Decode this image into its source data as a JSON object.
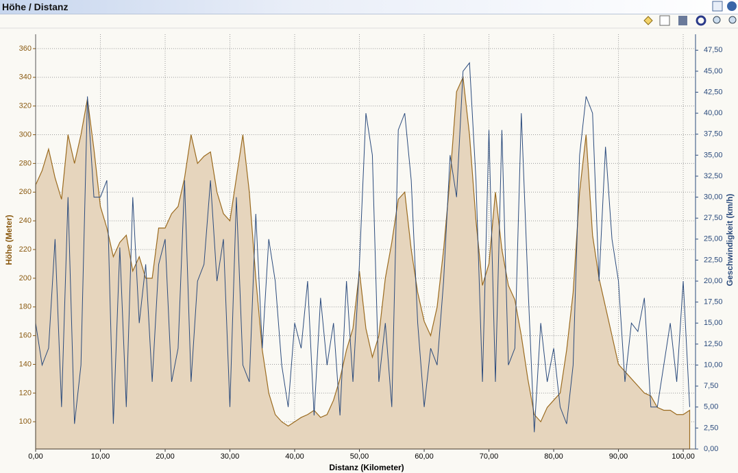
{
  "header": {
    "title": "Höhe / Distanz"
  },
  "chart_data": {
    "type": "line",
    "grid": true,
    "xlabel": "Distanz (Kilometer)",
    "ylabel": "Höhe (Meter)",
    "y2label": "Geschwindigkeit (km/h)",
    "x": [
      0,
      1,
      2,
      3,
      4,
      5,
      6,
      7,
      8,
      9,
      10,
      11,
      12,
      13,
      14,
      15,
      16,
      17,
      18,
      19,
      20,
      21,
      22,
      23,
      24,
      25,
      26,
      27,
      28,
      29,
      30,
      31,
      32,
      33,
      34,
      35,
      36,
      37,
      38,
      39,
      40,
      41,
      42,
      43,
      44,
      45,
      46,
      47,
      48,
      49,
      50,
      51,
      52,
      53,
      54,
      55,
      56,
      57,
      58,
      59,
      60,
      61,
      62,
      63,
      64,
      65,
      66,
      67,
      68,
      69,
      70,
      71,
      72,
      73,
      74,
      75,
      76,
      77,
      78,
      79,
      80,
      81,
      82,
      83,
      84,
      85,
      86,
      87,
      88,
      89,
      90,
      91,
      92,
      93,
      94,
      95,
      96,
      97,
      98,
      99,
      100,
      101
    ],
    "series": [
      {
        "type": "area",
        "color": "#9a6a1e",
        "fill": "#e6d5bd",
        "values": [
          265,
          275,
          290,
          270,
          255,
          300,
          280,
          300,
          325,
          290,
          250,
          235,
          215,
          225,
          230,
          205,
          215,
          200,
          200,
          235,
          235,
          245,
          250,
          270,
          300,
          280,
          285,
          288,
          260,
          245,
          240,
          270,
          300,
          260,
          200,
          150,
          120,
          105,
          100,
          97,
          100,
          103,
          105,
          108,
          103,
          105,
          115,
          130,
          150,
          165,
          205,
          165,
          145,
          160,
          200,
          225,
          255,
          260,
          220,
          190,
          170,
          160,
          180,
          220,
          270,
          330,
          340,
          300,
          240,
          195,
          210,
          260,
          220,
          195,
          185,
          160,
          130,
          105,
          100,
          110,
          115,
          120,
          150,
          190,
          260,
          300,
          230,
          200,
          180,
          160,
          140,
          135,
          130,
          125,
          120,
          118,
          110,
          108,
          108,
          105,
          105,
          108
        ]
      },
      {
        "type": "line",
        "axis": "y2",
        "color": "#2a4a7c",
        "values": [
          15,
          10,
          12,
          25,
          5,
          30,
          3,
          10,
          42,
          30,
          30,
          32,
          3,
          24,
          5,
          30,
          15,
          22,
          8,
          22,
          25,
          8,
          12,
          32,
          8,
          20,
          22,
          32,
          20,
          25,
          5,
          30,
          10,
          8,
          28,
          12,
          25,
          20,
          10,
          5,
          15,
          12,
          20,
          4,
          18,
          10,
          15,
          4,
          20,
          8,
          22,
          40,
          35,
          8,
          15,
          5,
          38,
          40,
          32,
          15,
          5,
          12,
          10,
          20,
          35,
          30,
          45,
          46,
          32,
          8,
          38,
          8,
          38,
          10,
          12,
          40,
          20,
          2,
          15,
          8,
          12,
          5,
          3,
          10,
          35,
          42,
          40,
          20,
          36,
          25,
          20,
          8,
          15,
          14,
          18,
          5,
          5,
          10,
          15,
          8,
          20,
          5
        ]
      }
    ],
    "xlim": [
      0,
      101.9
    ],
    "ylim": [
      81,
      370
    ],
    "y2lim": [
      0,
      49.4
    ],
    "xticks": [
      {
        "value": 0,
        "label": "0,00"
      },
      {
        "value": 10,
        "label": "10,00"
      },
      {
        "value": 20,
        "label": "20,00"
      },
      {
        "value": 30,
        "label": "30,00"
      },
      {
        "value": 40,
        "label": "40,00"
      },
      {
        "value": 50,
        "label": "50,00"
      },
      {
        "value": 60,
        "label": "60,00"
      },
      {
        "value": 70,
        "label": "70,00"
      },
      {
        "value": 80,
        "label": "80,00"
      },
      {
        "value": 90,
        "label": "90,00"
      },
      {
        "value": 100,
        "label": "100,00"
      }
    ],
    "yticks": [
      100,
      120,
      140,
      160,
      180,
      200,
      220,
      240,
      260,
      280,
      300,
      320,
      340,
      360
    ],
    "y2ticks": [
      {
        "value": 0,
        "label": "0,00"
      },
      {
        "value": 2.5,
        "label": "2,50"
      },
      {
        "value": 5,
        "label": "5,00"
      },
      {
        "value": 7.5,
        "label": "7,50"
      },
      {
        "value": 10,
        "label": "10,00"
      },
      {
        "value": 12.5,
        "label": "12,50"
      },
      {
        "value": 15,
        "label": "15,00"
      },
      {
        "value": 17.5,
        "label": "17,50"
      },
      {
        "value": 20,
        "label": "20,00"
      },
      {
        "value": 22.5,
        "label": "22,50"
      },
      {
        "value": 25,
        "label": "25,00"
      },
      {
        "value": 27.5,
        "label": "27,50"
      },
      {
        "value": 30,
        "label": "30,00"
      },
      {
        "value": 32.5,
        "label": "32,50"
      },
      {
        "value": 35,
        "label": "35,00"
      },
      {
        "value": 37.5,
        "label": "37,50"
      },
      {
        "value": 40,
        "label": "40,00"
      },
      {
        "value": 42.5,
        "label": "42,50"
      },
      {
        "value": 45,
        "label": "45,00"
      },
      {
        "value": 47.5,
        "label": "47,50"
      }
    ]
  }
}
